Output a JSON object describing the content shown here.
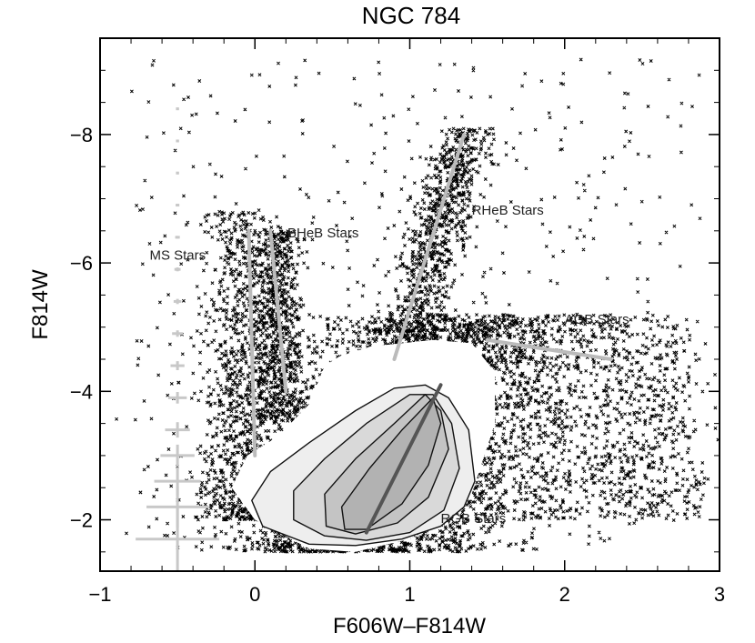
{
  "chart_data": {
    "type": "scatter",
    "title": "NGC 784",
    "xlabel": "F606W–F814W",
    "ylabel": "F814W",
    "xlim": [
      -1,
      3
    ],
    "ylim": [
      -1.2,
      -9.5
    ],
    "y_inverted": true,
    "x_ticks": [
      -1,
      0,
      1,
      2,
      3
    ],
    "x_tick_labels": [
      "−1",
      "0",
      "1",
      "2",
      "3"
    ],
    "y_ticks": [
      -8,
      -6,
      -4,
      -2
    ],
    "y_tick_labels": [
      "−8",
      "−6",
      "−4",
      "−2"
    ],
    "grid": false,
    "legend": "none",
    "annotations": [
      {
        "text": "MS Stars",
        "x": -0.68,
        "y": -6.05
      },
      {
        "text": "BHeB Stars",
        "x": 0.21,
        "y": -6.4
      },
      {
        "text": "RHeB Stars",
        "x": 1.4,
        "y": -6.75
      },
      {
        "text": "AGB Stars",
        "x": 2.0,
        "y": -5.05
      },
      {
        "text": "RGB Stars",
        "x": 1.2,
        "y": -1.95
      }
    ],
    "feature_lines": [
      {
        "name": "MS",
        "x": [
          -0.04,
          0.0
        ],
        "y": [
          -6.5,
          -3.0
        ],
        "color": "#bbbbbb"
      },
      {
        "name": "BHeB",
        "x": [
          0.1,
          0.2
        ],
        "y": [
          -6.5,
          -4.0
        ],
        "color": "#bbbbbb"
      },
      {
        "name": "RHeB",
        "x": [
          0.9,
          1.35
        ],
        "y": [
          -4.5,
          -8.0
        ],
        "color": "#bbbbbb"
      },
      {
        "name": "AGB",
        "x": [
          1.5,
          2.3
        ],
        "y": [
          -4.8,
          -4.5
        ],
        "color": "#bbbbbb"
      },
      {
        "name": "RGB",
        "x": [
          0.72,
          1.2
        ],
        "y": [
          -1.8,
          -4.1
        ],
        "color": "#555555"
      }
    ],
    "error_bars": [
      {
        "x": -0.5,
        "y": -1.7,
        "xerr": 0.27,
        "yerr": 0.5
      },
      {
        "x": -0.5,
        "y": -2.2,
        "xerr": 0.2,
        "yerr": 0.32
      },
      {
        "x": -0.5,
        "y": -2.6,
        "xerr": 0.15,
        "yerr": 0.22
      },
      {
        "x": -0.5,
        "y": -3.0,
        "xerr": 0.11,
        "yerr": 0.17
      },
      {
        "x": -0.5,
        "y": -3.4,
        "xerr": 0.08,
        "yerr": 0.12
      },
      {
        "x": -0.5,
        "y": -3.9,
        "xerr": 0.06,
        "yerr": 0.09
      },
      {
        "x": -0.5,
        "y": -4.4,
        "xerr": 0.045,
        "yerr": 0.07
      },
      {
        "x": -0.5,
        "y": -4.9,
        "xerr": 0.035,
        "yerr": 0.05
      },
      {
        "x": -0.5,
        "y": -5.4,
        "xerr": 0.025,
        "yerr": 0.04
      },
      {
        "x": -0.5,
        "y": -5.9,
        "xerr": 0.02,
        "yerr": 0.03
      },
      {
        "x": -0.5,
        "y": -6.4,
        "xerr": 0.015,
        "yerr": 0.02
      },
      {
        "x": -0.5,
        "y": -6.9,
        "xerr": 0.012,
        "yerr": 0.02
      },
      {
        "x": -0.5,
        "y": -7.4,
        "xerr": 0.01,
        "yerr": 0.02
      },
      {
        "x": -0.5,
        "y": -7.9,
        "xerr": 0.01,
        "yerr": 0.02
      },
      {
        "x": -0.5,
        "y": -8.4,
        "xerr": 0.01,
        "yerr": 0.02
      }
    ],
    "density_contours": [
      {
        "level": 1,
        "fill": "#ffffff",
        "x": [
          0.45,
          0.55,
          0.75,
          0.95,
          1.15,
          1.4,
          1.55,
          1.55,
          1.4,
          1.0,
          0.65,
          0.35,
          0.0,
          -0.15,
          -0.05,
          0.15,
          0.35
        ],
        "y": [
          -4.4,
          -4.55,
          -4.7,
          -4.75,
          -4.8,
          -4.75,
          -4.3,
          -3.5,
          -2.4,
          -1.7,
          -1.5,
          -1.55,
          -2.0,
          -2.5,
          -3.0,
          -3.3,
          -3.8
        ]
      },
      {
        "level": 2,
        "fill": "#eeeeee",
        "x": [
          0.9,
          1.1,
          1.25,
          1.38,
          1.42,
          1.35,
          1.2,
          0.95,
          0.65,
          0.35,
          0.05,
          -0.02,
          0.1,
          0.35,
          0.65
        ],
        "y": [
          -4.05,
          -4.1,
          -3.9,
          -3.4,
          -2.6,
          -2.2,
          -1.9,
          -1.7,
          -1.6,
          -1.62,
          -1.9,
          -2.3,
          -2.75,
          -3.2,
          -3.7
        ]
      },
      {
        "level": 3,
        "fill": "#d9d9d9",
        "x": [
          1.0,
          1.15,
          1.27,
          1.32,
          1.22,
          1.0,
          0.72,
          0.45,
          0.25,
          0.25,
          0.45,
          0.72
        ],
        "y": [
          -3.95,
          -3.95,
          -3.5,
          -2.8,
          -2.15,
          -1.8,
          -1.68,
          -1.75,
          -2.0,
          -2.45,
          -2.95,
          -3.5
        ]
      },
      {
        "level": 4,
        "fill": "#c4c4c4",
        "x": [
          1.1,
          1.2,
          1.25,
          1.12,
          0.92,
          0.65,
          0.46,
          0.45,
          0.65,
          0.9
        ],
        "y": [
          -3.95,
          -3.7,
          -3.1,
          -2.35,
          -1.95,
          -1.78,
          -1.9,
          -2.4,
          -2.95,
          -3.5
        ]
      },
      {
        "level": 5,
        "fill": "#b2b2b2",
        "x": [
          1.15,
          1.2,
          1.12,
          0.95,
          0.72,
          0.58,
          0.56,
          0.74,
          0.95
        ],
        "y": [
          -3.9,
          -3.5,
          -2.85,
          -2.25,
          -1.85,
          -1.85,
          -2.2,
          -2.8,
          -3.4
        ]
      }
    ],
    "marker": "x",
    "marker_color": "#000000"
  }
}
